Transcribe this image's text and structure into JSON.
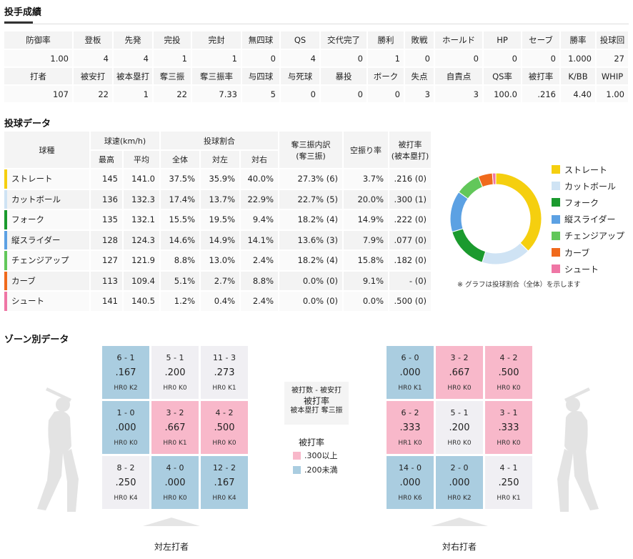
{
  "titles": {
    "pitching": "投手成績",
    "pitch_data": "投球データ",
    "zone": "ゾーン別データ"
  },
  "stats": {
    "row1_headers": [
      "防御率",
      "登板",
      "先発",
      "完投",
      "完封",
      "無四球",
      "QS",
      "交代完了",
      "勝利",
      "敗戦",
      "ホールド",
      "HP",
      "セーブ",
      "勝率",
      "投球回"
    ],
    "row1_values": [
      "1.00",
      "4",
      "4",
      "1",
      "1",
      "0",
      "4",
      "0",
      "1",
      "0",
      "0",
      "0",
      "0",
      "1.000",
      "27"
    ],
    "row2_headers": [
      "打者",
      "被安打",
      "被本塁打",
      "奪三振",
      "奪三振率",
      "与四球",
      "与死球",
      "暴投",
      "ボーク",
      "失点",
      "自責点",
      "QS率",
      "被打率",
      "K/BB",
      "WHIP"
    ],
    "row2_values": [
      "107",
      "22",
      "1",
      "22",
      "7.33",
      "5",
      "0",
      "0",
      "0",
      "3",
      "3",
      "100.0",
      ".216",
      "4.40",
      "1.00"
    ]
  },
  "pitch_table": {
    "h_type": "球種",
    "h_speed": "球速(km/h)",
    "h_max": "最高",
    "h_avg": "平均",
    "h_ratio": "投球割合",
    "h_all": "全体",
    "h_vl": "対左",
    "h_vr": "対右",
    "h_k1": "奪三振内訳",
    "h_k2": "(奪三振)",
    "h_whiff": "空振り率",
    "h_ba1": "被打率",
    "h_ba2": "(被本塁打)",
    "rows": [
      {
        "name": "ストレート",
        "max": "145",
        "avg": "141.0",
        "all": "37.5%",
        "vl": "35.9%",
        "vr": "40.0%",
        "k": "27.3% (6)",
        "whiff": "3.7%",
        "ba": ".216 (0)"
      },
      {
        "name": "カットボール",
        "max": "136",
        "avg": "132.3",
        "all": "17.4%",
        "vl": "13.7%",
        "vr": "22.9%",
        "k": "22.7% (5)",
        "whiff": "20.0%",
        "ba": ".300 (1)"
      },
      {
        "name": "フォーク",
        "max": "135",
        "avg": "132.1",
        "all": "15.5%",
        "vl": "19.5%",
        "vr": "9.4%",
        "k": "18.2% (4)",
        "whiff": "14.9%",
        "ba": ".222 (0)"
      },
      {
        "name": "縦スライダー",
        "max": "128",
        "avg": "124.3",
        "all": "14.6%",
        "vl": "14.9%",
        "vr": "14.1%",
        "k": "13.6% (3)",
        "whiff": "7.9%",
        "ba": ".077 (0)"
      },
      {
        "name": "チェンジアップ",
        "max": "127",
        "avg": "121.9",
        "all": "8.8%",
        "vl": "13.0%",
        "vr": "2.4%",
        "k": "18.2% (4)",
        "whiff": "15.8%",
        "ba": ".182 (0)"
      },
      {
        "name": "カーブ",
        "max": "113",
        "avg": "109.4",
        "all": "5.1%",
        "vl": "2.7%",
        "vr": "8.8%",
        "k": "0.0% (0)",
        "whiff": "9.1%",
        "ba": "- (0)"
      },
      {
        "name": "シュート",
        "max": "141",
        "avg": "140.5",
        "all": "1.2%",
        "vl": "0.4%",
        "vr": "2.4%",
        "k": "0.0% (0)",
        "whiff": "0.0%",
        "ba": ".500 (0)"
      }
    ]
  },
  "colors": {
    "ストレート": "#f5cf0f",
    "カットボール": "#cfe3f4",
    "フォーク": "#1b9a2e",
    "縦スライダー": "#5ca1e3",
    "チェンジアップ": "#62c75a",
    "カーブ": "#f06a1c",
    "シュート": "#ef76a5",
    "high": "#f8b8ca",
    "low": "#aacde0",
    "neutral": "#f0eff3"
  },
  "chart_data": {
    "type": "pie",
    "categories": [
      "ストレート",
      "カットボール",
      "フォーク",
      "縦スライダー",
      "チェンジアップ",
      "カーブ",
      "シュート"
    ],
    "values": [
      37.5,
      17.4,
      15.5,
      14.6,
      8.8,
      5.1,
      1.2
    ],
    "note": "※ グラフは投球割合（全体）を示します"
  },
  "zone": {
    "left": [
      {
        "c": "6 - 1",
        "a": ".167",
        "h": "HR0 K2",
        "t": "lo"
      },
      {
        "c": "5 - 1",
        "a": ".200",
        "h": "HR0 K0",
        "t": "mid"
      },
      {
        "c": "11 - 3",
        "a": ".273",
        "h": "HR0 K1",
        "t": "mid"
      },
      {
        "c": "1 - 0",
        "a": ".000",
        "h": "HR0 K0",
        "t": "lo"
      },
      {
        "c": "3 - 2",
        "a": ".667",
        "h": "HR0 K1",
        "t": "hi"
      },
      {
        "c": "4 - 2",
        "a": ".500",
        "h": "HR0 K0",
        "t": "hi"
      },
      {
        "c": "8 - 2",
        "a": ".250",
        "h": "HR0 K4",
        "t": "mid"
      },
      {
        "c": "4 - 0",
        "a": ".000",
        "h": "HR0 K0",
        "t": "lo"
      },
      {
        "c": "12 - 2",
        "a": ".167",
        "h": "HR0 K4",
        "t": "lo"
      }
    ],
    "right": [
      {
        "c": "6 - 0",
        "a": ".000",
        "h": "HR0 K1",
        "t": "lo"
      },
      {
        "c": "3 - 2",
        "a": ".667",
        "h": "HR0 K0",
        "t": "hi"
      },
      {
        "c": "4 - 2",
        "a": ".500",
        "h": "HR0 K0",
        "t": "hi"
      },
      {
        "c": "6 - 2",
        "a": ".333",
        "h": "HR1 K0",
        "t": "hi"
      },
      {
        "c": "5 - 1",
        "a": ".200",
        "h": "HR0 K0",
        "t": "mid"
      },
      {
        "c": "3 - 1",
        "a": ".333",
        "h": "HR0 K0",
        "t": "hi"
      },
      {
        "c": "14 - 0",
        "a": ".000",
        "h": "HR0 K6",
        "t": "lo"
      },
      {
        "c": "2 - 0",
        "a": ".000",
        "h": "HR0 K2",
        "t": "lo"
      },
      {
        "c": "4 - 1",
        "a": ".250",
        "h": "HR0 K1",
        "t": "mid"
      }
    ],
    "left_label": "対左打者",
    "right_label": "対右打者",
    "key_line1": "被打数 - 被安打",
    "key_line2": "被打率",
    "key_line3": "被本塁打 奪三振",
    "rate_title": "被打率",
    "rate_high": ".300以上",
    "rate_low": ".200未満"
  }
}
